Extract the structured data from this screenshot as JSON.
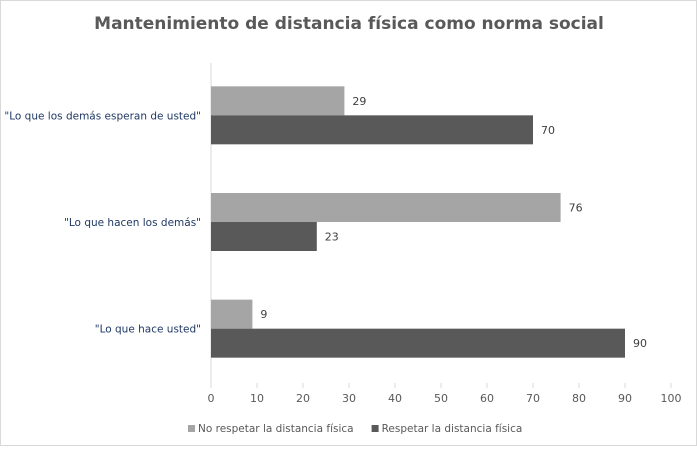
{
  "chart_data": {
    "type": "bar",
    "orientation": "horizontal",
    "title": "Mantenimiento de distancia física como norma social",
    "categories": [
      "\"Lo que los demás esperan de usted\"",
      "\"Lo que hacen los demás\"",
      "\"Lo que hace usted\""
    ],
    "series": [
      {
        "name": "No respetar la distancia física",
        "values": [
          29,
          76,
          9
        ],
        "color": "#A5A5A5"
      },
      {
        "name": "Respetar la distancia física",
        "values": [
          70,
          23,
          90
        ],
        "color": "#595959"
      }
    ],
    "xlim": [
      0,
      100
    ],
    "xticks": [
      0,
      10,
      20,
      30,
      40,
      50,
      60,
      70,
      80,
      90,
      100
    ],
    "xlabel": "",
    "ylabel": "",
    "legend": "bottom",
    "grid": false
  }
}
